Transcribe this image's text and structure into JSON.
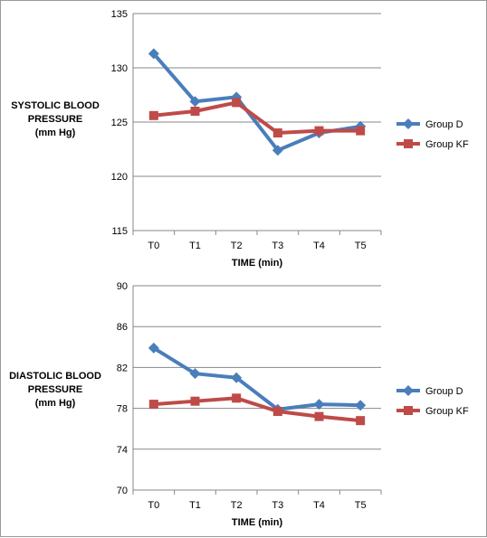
{
  "chart_data": [
    {
      "type": "line",
      "ylabel": [
        "SYSTOLIC BLOOD",
        "PRESSURE",
        "(mm Hg)"
      ],
      "xlabel": "TIME (min)",
      "categories": [
        "T0",
        "T1",
        "T2",
        "T3",
        "T4",
        "T5"
      ],
      "ylim": [
        115,
        135
      ],
      "yticks": [
        115,
        120,
        125,
        130,
        135
      ],
      "grid": "horizontal",
      "legend": "right",
      "series": [
        {
          "name": "Group D",
          "color": "#4a7ebb",
          "marker": "diamond",
          "values": [
            131.3,
            126.9,
            127.3,
            122.4,
            124.0,
            124.6
          ]
        },
        {
          "name": "Group KF",
          "color": "#be4b48",
          "marker": "square",
          "values": [
            125.6,
            126.0,
            126.8,
            124.0,
            124.2,
            124.2
          ]
        }
      ]
    },
    {
      "type": "line",
      "ylabel": [
        "DIASTOLIC BLOOD",
        "PRESSURE",
        "(mm Hg)"
      ],
      "xlabel": "TIME (min)",
      "categories": [
        "T0",
        "T1",
        "T2",
        "T3",
        "T4",
        "T5"
      ],
      "ylim": [
        70,
        90
      ],
      "yticks": [
        70,
        74,
        78,
        82,
        86,
        90
      ],
      "grid": "horizontal",
      "legend": "right",
      "series": [
        {
          "name": "Group D",
          "color": "#4a7ebb",
          "marker": "diamond",
          "values": [
            83.9,
            81.4,
            81.0,
            77.9,
            78.4,
            78.3
          ]
        },
        {
          "name": "Group KF",
          "color": "#be4b48",
          "marker": "square",
          "values": [
            78.4,
            78.7,
            79.0,
            77.7,
            77.2,
            76.8
          ]
        }
      ]
    }
  ]
}
